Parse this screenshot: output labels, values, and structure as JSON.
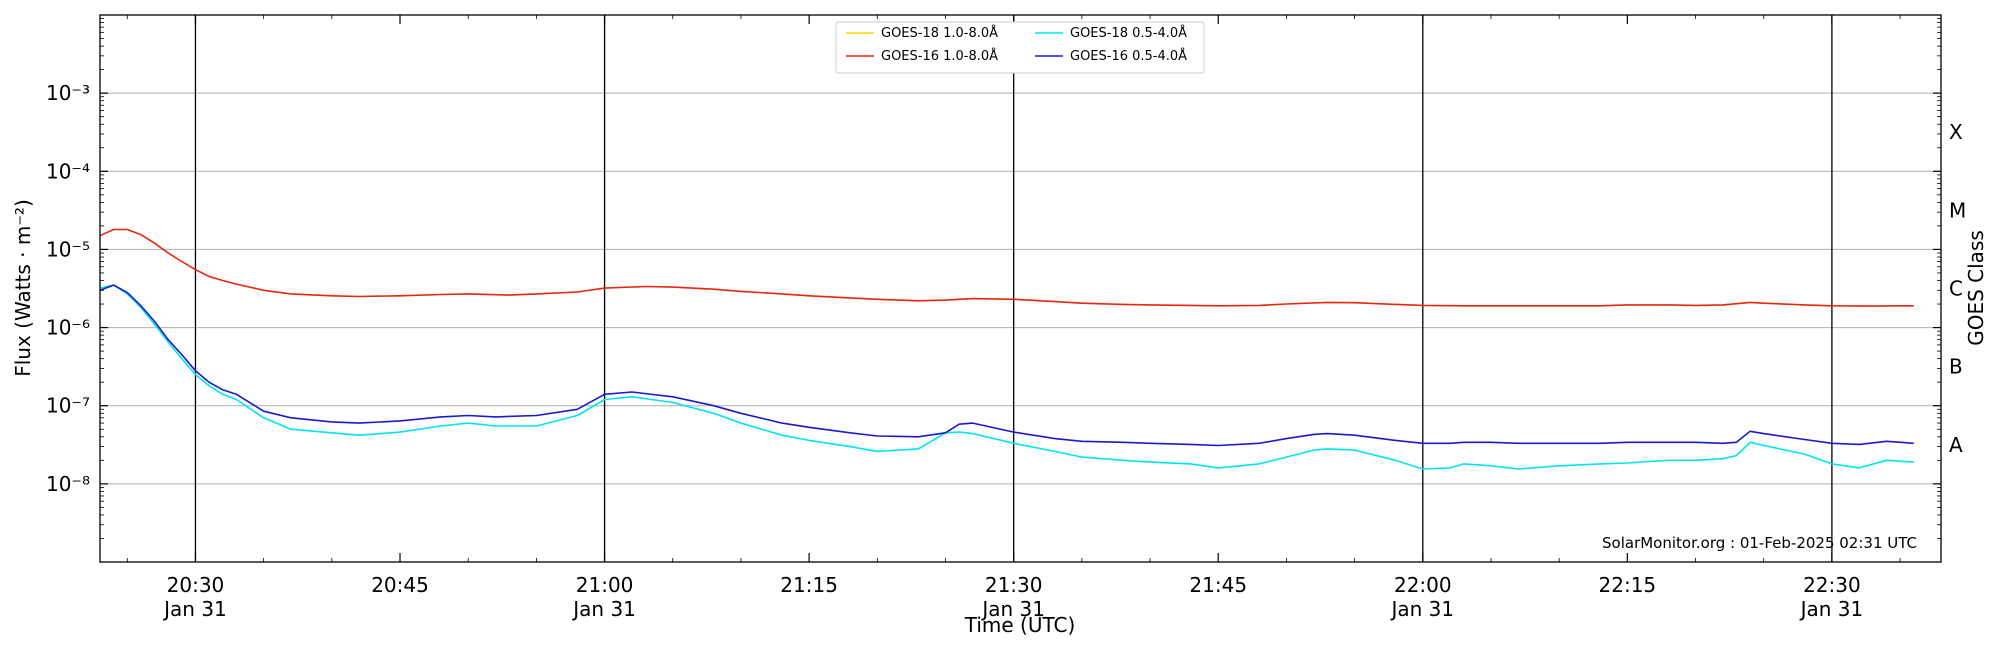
{
  "chart_data": {
    "type": "line",
    "title": "",
    "xlabel": "Time (UTC)",
    "ylabel": "Flux (Watts · m⁻²)",
    "y2label": "GOES Class",
    "yscale": "log",
    "xlim": [
      "20:23",
      "22:38"
    ],
    "ylim": [
      1e-09,
      0.01
    ],
    "grid": "horizontal",
    "legend_position": "top-center",
    "credit": "SolarMonitor.org : 01-Feb-2025 02:31 UTC",
    "x_ticks": [
      {
        "time": "20:30",
        "label": "20:30",
        "date": "Jan 31"
      },
      {
        "time": "20:45",
        "label": "20:45",
        "date": ""
      },
      {
        "time": "21:00",
        "label": "21:00",
        "date": "Jan 31"
      },
      {
        "time": "21:15",
        "label": "21:15",
        "date": ""
      },
      {
        "time": "21:30",
        "label": "21:30",
        "date": "Jan 31"
      },
      {
        "time": "21:45",
        "label": "21:45",
        "date": ""
      },
      {
        "time": "22:00",
        "label": "22:00",
        "date": "Jan 31"
      },
      {
        "time": "22:15",
        "label": "22:15",
        "date": ""
      },
      {
        "time": "22:30",
        "label": "22:30",
        "date": "Jan 31"
      }
    ],
    "y_ticks": [
      {
        "value": 1e-08,
        "label": "10⁻⁸"
      },
      {
        "value": 1e-07,
        "label": "10⁻⁷"
      },
      {
        "value": 1e-06,
        "label": "10⁻⁶"
      },
      {
        "value": 1e-05,
        "label": "10⁻⁵"
      },
      {
        "value": 0.0001,
        "label": "10⁻⁴"
      },
      {
        "value": 0.001,
        "label": "10⁻³"
      }
    ],
    "goes_classes": [
      {
        "label": "A",
        "level": 1e-08
      },
      {
        "label": "B",
        "level": 1e-07
      },
      {
        "label": "C",
        "level": 1e-06
      },
      {
        "label": "M",
        "level": 1e-05
      },
      {
        "label": "X",
        "level": 0.0001
      }
    ],
    "vertical_lines": [
      "20:30",
      "21:00",
      "21:30",
      "22:00",
      "22:30"
    ],
    "series": [
      {
        "name": "GOES-18 1.0-8.0Å",
        "color": "#ffd700",
        "x": [],
        "values": []
      },
      {
        "name": "GOES-16 1.0-8.0Å",
        "color": "#e8260e",
        "x": [
          "20:23",
          "20:24",
          "20:25",
          "20:26",
          "20:27",
          "20:28",
          "20:29",
          "20:30",
          "20:31",
          "20:32",
          "20:33",
          "20:35",
          "20:37",
          "20:40",
          "20:42",
          "20:45",
          "20:48",
          "20:50",
          "20:53",
          "20:55",
          "20:58",
          "21:00",
          "21:03",
          "21:05",
          "21:08",
          "21:10",
          "21:13",
          "21:15",
          "21:18",
          "21:20",
          "21:23",
          "21:25",
          "21:27",
          "21:30",
          "21:33",
          "21:35",
          "21:38",
          "21:40",
          "21:43",
          "21:45",
          "21:48",
          "21:50",
          "21:53",
          "21:55",
          "21:58",
          "22:00",
          "22:03",
          "22:05",
          "22:08",
          "22:10",
          "22:13",
          "22:15",
          "22:18",
          "22:20",
          "22:22",
          "22:24",
          "22:25",
          "22:28",
          "22:30",
          "22:33",
          "22:35",
          "22:36"
        ],
        "values": [
          1.5e-05,
          1.8e-05,
          1.8e-05,
          1.55e-05,
          1.2e-05,
          9e-06,
          7e-06,
          5.5e-06,
          4.5e-06,
          4e-06,
          3.6e-06,
          3e-06,
          2.7e-06,
          2.55e-06,
          2.5e-06,
          2.55e-06,
          2.65e-06,
          2.7e-06,
          2.6e-06,
          2.7e-06,
          2.85e-06,
          3.2e-06,
          3.35e-06,
          3.3e-06,
          3.1e-06,
          2.9e-06,
          2.7e-06,
          2.55e-06,
          2.4e-06,
          2.3e-06,
          2.2e-06,
          2.25e-06,
          2.35e-06,
          2.3e-06,
          2.15e-06,
          2.05e-06,
          1.98e-06,
          1.95e-06,
          1.92e-06,
          1.9e-06,
          1.92e-06,
          2e-06,
          2.1e-06,
          2.08e-06,
          1.98e-06,
          1.92e-06,
          1.9e-06,
          1.9e-06,
          1.9e-06,
          1.9e-06,
          1.9e-06,
          1.95e-06,
          1.95e-06,
          1.92e-06,
          1.95e-06,
          2.1e-06,
          2.05e-06,
          1.95e-06,
          1.9e-06,
          1.88e-06,
          1.9e-06,
          1.9e-06
        ]
      },
      {
        "name": "GOES-18 0.5-4.0Å",
        "color": "#00e5ee",
        "x": [
          "20:23",
          "20:24",
          "20:25",
          "20:26",
          "20:27",
          "20:28",
          "20:29",
          "20:30",
          "20:31",
          "20:32",
          "20:33",
          "20:35",
          "20:37",
          "20:40",
          "20:42",
          "20:45",
          "20:48",
          "20:50",
          "20:52",
          "20:55",
          "20:58",
          "21:00",
          "21:02",
          "21:05",
          "21:08",
          "21:10",
          "21:13",
          "21:15",
          "21:18",
          "21:20",
          "21:23",
          "21:25",
          "21:26",
          "21:27",
          "21:30",
          "21:33",
          "21:35",
          "21:38",
          "21:40",
          "21:43",
          "21:45",
          "21:48",
          "21:50",
          "21:52",
          "21:53",
          "21:55",
          "21:58",
          "22:00",
          "22:02",
          "22:03",
          "22:05",
          "22:07",
          "22:10",
          "22:13",
          "22:15",
          "22:18",
          "22:20",
          "22:22",
          "22:23",
          "22:24",
          "22:25",
          "22:28",
          "22:30",
          "22:32",
          "22:34",
          "22:36"
        ],
        "values": [
          3.2e-06,
          3.5e-06,
          2.7e-06,
          1.8e-06,
          1.1e-06,
          6.5e-07,
          4e-07,
          2.5e-07,
          1.8e-07,
          1.4e-07,
          1.2e-07,
          7e-08,
          5e-08,
          4.5e-08,
          4.2e-08,
          4.6e-08,
          5.5e-08,
          6e-08,
          5.5e-08,
          5.5e-08,
          7.5e-08,
          1.2e-07,
          1.3e-07,
          1.1e-07,
          8e-08,
          6e-08,
          4.2e-08,
          3.6e-08,
          3e-08,
          2.6e-08,
          2.8e-08,
          4.5e-08,
          4.6e-08,
          4.4e-08,
          3.3e-08,
          2.6e-08,
          2.2e-08,
          2e-08,
          1.9e-08,
          1.8e-08,
          1.6e-08,
          1.8e-08,
          2.2e-08,
          2.7e-08,
          2.8e-08,
          2.7e-08,
          2e-08,
          1.55e-08,
          1.6e-08,
          1.8e-08,
          1.7e-08,
          1.55e-08,
          1.7e-08,
          1.8e-08,
          1.85e-08,
          2e-08,
          2e-08,
          2.1e-08,
          2.3e-08,
          3.4e-08,
          3.1e-08,
          2.4e-08,
          1.8e-08,
          1.6e-08,
          2e-08,
          1.9e-08
        ]
      },
      {
        "name": "GOES-16 0.5-4.0Å",
        "color": "#1a1acd",
        "x": [
          "20:23",
          "20:24",
          "20:25",
          "20:26",
          "20:27",
          "20:28",
          "20:29",
          "20:30",
          "20:31",
          "20:32",
          "20:33",
          "20:35",
          "20:37",
          "20:40",
          "20:42",
          "20:45",
          "20:48",
          "20:50",
          "20:52",
          "20:55",
          "20:58",
          "21:00",
          "21:02",
          "21:05",
          "21:08",
          "21:10",
          "21:13",
          "21:15",
          "21:18",
          "21:20",
          "21:23",
          "21:25",
          "21:26",
          "21:27",
          "21:30",
          "21:33",
          "21:35",
          "21:38",
          "21:40",
          "21:43",
          "21:45",
          "21:48",
          "21:50",
          "21:52",
          "21:53",
          "21:55",
          "21:58",
          "22:00",
          "22:02",
          "22:03",
          "22:05",
          "22:07",
          "22:10",
          "22:13",
          "22:15",
          "22:18",
          "22:20",
          "22:22",
          "22:23",
          "22:24",
          "22:25",
          "22:28",
          "22:30",
          "22:32",
          "22:34",
          "22:36"
        ],
        "values": [
          3e-06,
          3.5e-06,
          2.8e-06,
          1.9e-06,
          1.2e-06,
          7e-07,
          4.5e-07,
          2.8e-07,
          2e-07,
          1.6e-07,
          1.4e-07,
          8.5e-08,
          7e-08,
          6.2e-08,
          6e-08,
          6.4e-08,
          7.2e-08,
          7.5e-08,
          7.2e-08,
          7.5e-08,
          9e-08,
          1.4e-07,
          1.5e-07,
          1.3e-07,
          1e-07,
          8e-08,
          6e-08,
          5.3e-08,
          4.5e-08,
          4.1e-08,
          4e-08,
          4.5e-08,
          5.8e-08,
          6e-08,
          4.6e-08,
          3.8e-08,
          3.5e-08,
          3.4e-08,
          3.3e-08,
          3.2e-08,
          3.1e-08,
          3.3e-08,
          3.8e-08,
          4.3e-08,
          4.4e-08,
          4.2e-08,
          3.6e-08,
          3.3e-08,
          3.3e-08,
          3.4e-08,
          3.4e-08,
          3.3e-08,
          3.3e-08,
          3.3e-08,
          3.4e-08,
          3.4e-08,
          3.4e-08,
          3.3e-08,
          3.4e-08,
          4.7e-08,
          4.4e-08,
          3.7e-08,
          3.3e-08,
          3.2e-08,
          3.5e-08,
          3.3e-08
        ]
      }
    ]
  }
}
